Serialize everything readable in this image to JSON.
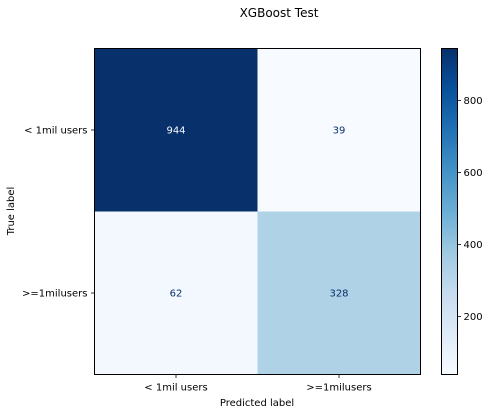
{
  "chart_data": {
    "type": "heatmap",
    "title": "XGBoost Test",
    "xlabel": "Predicted label",
    "ylabel": "True label",
    "x_categories": [
      "< 1mil users",
      ">=1milusers"
    ],
    "y_categories": [
      "< 1mil users",
      ">=1milusers"
    ],
    "values": [
      [
        944,
        39
      ],
      [
        62,
        328
      ]
    ],
    "colormap": "Blues",
    "colorbar": {
      "range": [
        39,
        944
      ],
      "ticks": [
        200,
        400,
        600,
        800
      ]
    },
    "grid": false,
    "colors": {
      "low": "#f7fbff",
      "high": "#08306b",
      "text_on_dark": "#f7fbff",
      "text_on_light": "#08306b"
    }
  }
}
